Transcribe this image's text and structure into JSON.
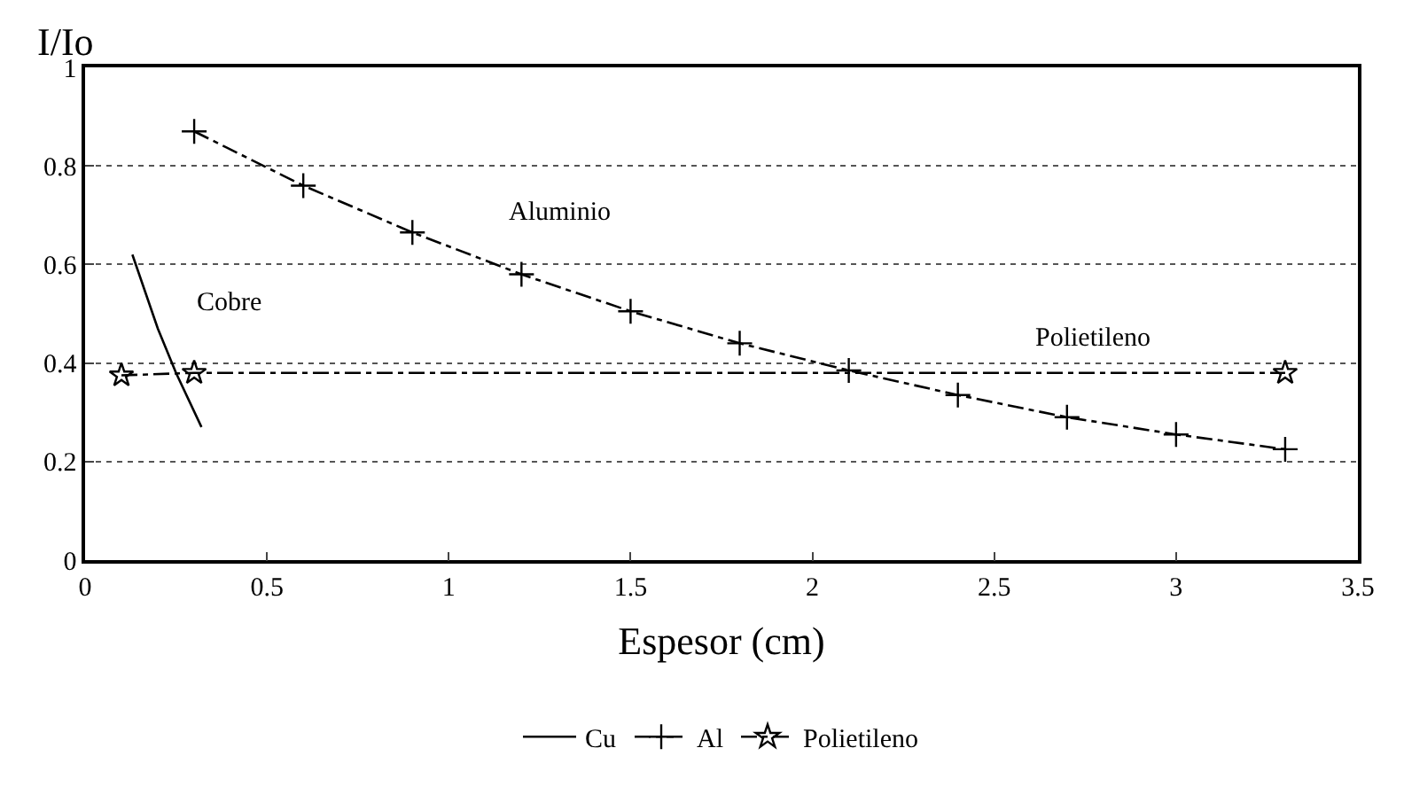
{
  "chart_data": {
    "type": "line",
    "xlabel": "Espesor (cm)",
    "ylabel": "I/Io",
    "xlim": [
      0,
      3.5
    ],
    "xticks": [
      0,
      0.5,
      1,
      1.5,
      2,
      2.5,
      3,
      3.5
    ],
    "ylim": [
      0,
      1
    ],
    "yticks": [
      0,
      0.2,
      0.4,
      0.6,
      0.8,
      1
    ],
    "grid": "y",
    "legend": "bottom",
    "series": [
      {
        "name": "Cu",
        "color": "#000000",
        "x": [
          0.13,
          0.2,
          0.25,
          0.32
        ],
        "values": [
          0.62,
          0.47,
          0.38,
          0.27
        ],
        "marker": "none",
        "line_style": "solid"
      },
      {
        "name": "Al",
        "color": "#000000",
        "x": [
          0.3,
          0.6,
          0.9,
          1.2,
          1.5,
          1.8,
          2.1,
          2.4,
          2.7,
          3.0,
          3.3
        ],
        "values": [
          0.87,
          0.76,
          0.665,
          0.58,
          0.505,
          0.44,
          0.385,
          0.335,
          0.29,
          0.255,
          0.225
        ],
        "marker": "cross",
        "line_style": "dashed"
      },
      {
        "name": "Polietileno",
        "color": "#000000",
        "x": [
          0.1,
          0.3,
          3.3
        ],
        "values": [
          0.375,
          0.38,
          0.38
        ],
        "marker": "star",
        "line_style": "dashed"
      }
    ],
    "annotations": [
      "Aluminio",
      "Cobre",
      "Polietileno"
    ]
  }
}
